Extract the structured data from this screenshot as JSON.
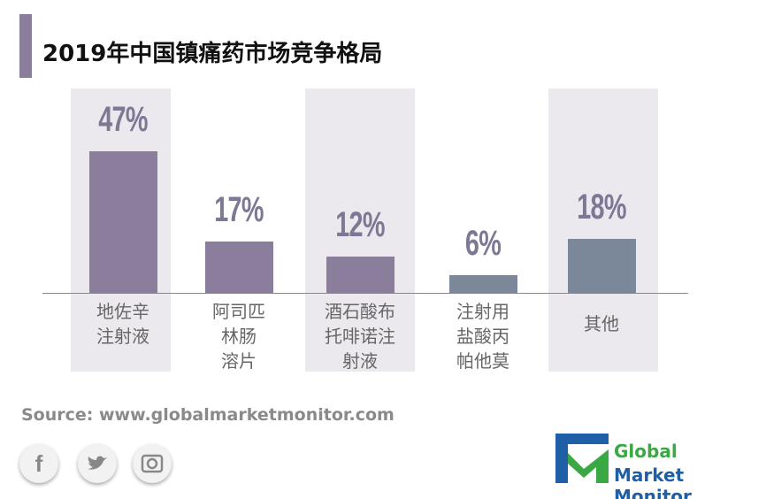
{
  "chart_data": {
    "type": "bar",
    "title": "2019年中国镇痛药市场竞争格局",
    "categories": [
      "地佐辛\n注射液",
      "阿司匹\n林肠\n溶片",
      "酒石酸布\n托啡诺注\n射液",
      "注射用\n盐酸丙\n帕他莫",
      "其他"
    ],
    "values": [
      47,
      17,
      12,
      6,
      18
    ],
    "value_labels": [
      "47%",
      "17%",
      "12%",
      "6%",
      "18%"
    ],
    "colors": [
      "#8a7e9c",
      "#8a7e9c",
      "#8a7e9c",
      "#7a889a",
      "#7a889a"
    ],
    "source": "Source: www.globalmarketmonitor.com",
    "logo": {
      "line1": "Global",
      "line2": "Market Monitor"
    }
  }
}
